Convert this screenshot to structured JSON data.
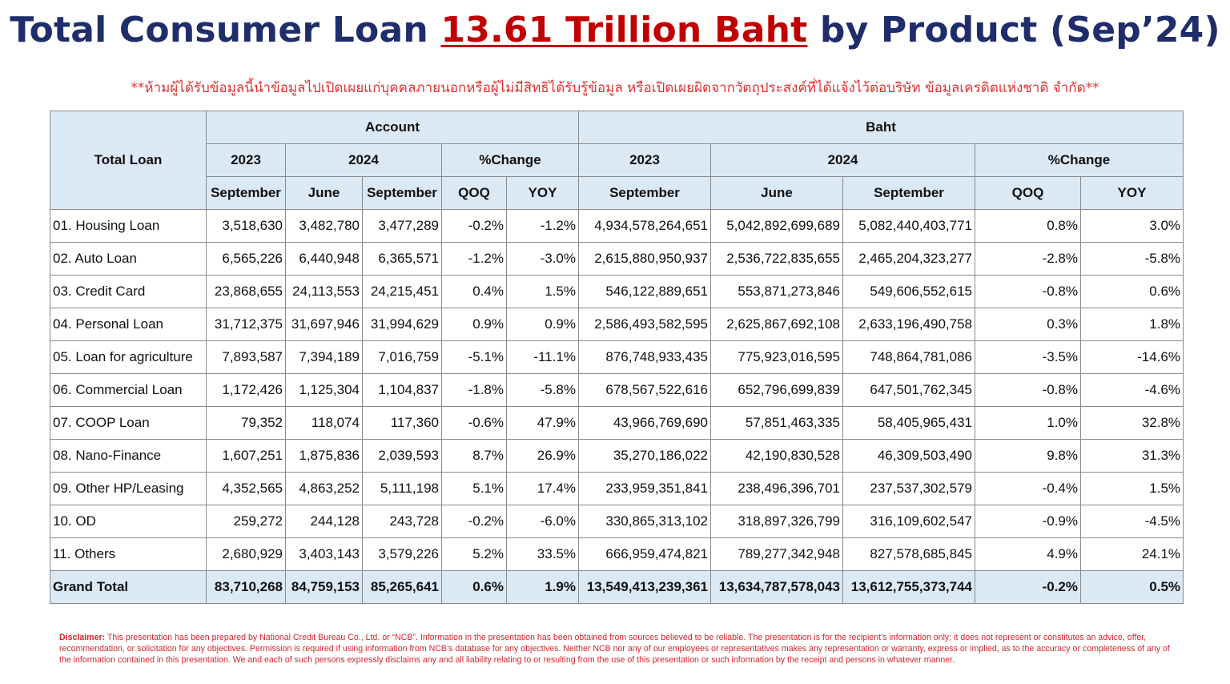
{
  "title": {
    "prefix": "Total Consumer Loan ",
    "highlight": "13.61 Trillion Baht",
    "suffix": " by Product (Sep’24)"
  },
  "warning": "**ห้ามผู้ได้รับข้อมูลนี้นำข้อมูลไปเปิดเผยแก่บุคคลภายนอกหรือผู้ไม่มีสิทธิได้รับรู้ข้อมูล หรือเปิดเผยผิดจากวัตถุประสงค์ที่ได้แจ้งไว้ต่อบริษัท ข้อมูลเครดิตแห่งชาติ จำกัด**",
  "table": {
    "corner": "Total Loan",
    "groups": {
      "account": "Account",
      "baht": "Baht"
    },
    "years": {
      "y2023": "2023",
      "y2024": "2024",
      "change": "%Change"
    },
    "subheaders": {
      "september": "September",
      "june": "June",
      "qoq": "QOQ",
      "yoy": "YOY"
    },
    "rows": [
      {
        "name": "01. Housing Loan",
        "values": [
          "3,518,630",
          "3,482,780",
          "3,477,289",
          "-0.2%",
          "-1.2%",
          "4,934,578,264,651",
          "5,042,892,699,689",
          "5,082,440,403,771",
          "0.8%",
          "3.0%"
        ]
      },
      {
        "name": "02. Auto Loan",
        "values": [
          "6,565,226",
          "6,440,948",
          "6,365,571",
          "-1.2%",
          "-3.0%",
          "2,615,880,950,937",
          "2,536,722,835,655",
          "2,465,204,323,277",
          "-2.8%",
          "-5.8%"
        ]
      },
      {
        "name": "03. Credit Card",
        "values": [
          "23,868,655",
          "24,113,553",
          "24,215,451",
          "0.4%",
          "1.5%",
          "546,122,889,651",
          "553,871,273,846",
          "549,606,552,615",
          "-0.8%",
          "0.6%"
        ]
      },
      {
        "name": "04. Personal Loan",
        "values": [
          "31,712,375",
          "31,697,946",
          "31,994,629",
          "0.9%",
          "0.9%",
          "2,586,493,582,595",
          "2,625,867,692,108",
          "2,633,196,490,758",
          "0.3%",
          "1.8%"
        ]
      },
      {
        "name": "05. Loan for agriculture",
        "values": [
          "7,893,587",
          "7,394,189",
          "7,016,759",
          "-5.1%",
          "-11.1%",
          "876,748,933,435",
          "775,923,016,595",
          "748,864,781,086",
          "-3.5%",
          "-14.6%"
        ]
      },
      {
        "name": "06. Commercial Loan",
        "values": [
          "1,172,426",
          "1,125,304",
          "1,104,837",
          "-1.8%",
          "-5.8%",
          "678,567,522,616",
          "652,796,699,839",
          "647,501,762,345",
          "-0.8%",
          "-4.6%"
        ]
      },
      {
        "name": "07. COOP Loan",
        "values": [
          "79,352",
          "118,074",
          "117,360",
          "-0.6%",
          "47.9%",
          "43,966,769,690",
          "57,851,463,335",
          "58,405,965,431",
          "1.0%",
          "32.8%"
        ]
      },
      {
        "name": "08. Nano-Finance",
        "values": [
          "1,607,251",
          "1,875,836",
          "2,039,593",
          "8.7%",
          "26.9%",
          "35,270,186,022",
          "42,190,830,528",
          "46,309,503,490",
          "9.8%",
          "31.3%"
        ]
      },
      {
        "name": "09. Other HP/Leasing",
        "values": [
          "4,352,565",
          "4,863,252",
          "5,111,198",
          "5.1%",
          "17.4%",
          "233,959,351,841",
          "238,496,396,701",
          "237,537,302,579",
          "-0.4%",
          "1.5%"
        ]
      },
      {
        "name": "10. OD",
        "values": [
          "259,272",
          "244,128",
          "243,728",
          "-0.2%",
          "-6.0%",
          "330,865,313,102",
          "318,897,326,799",
          "316,109,602,547",
          "-0.9%",
          "-4.5%"
        ]
      },
      {
        "name": "11. Others",
        "values": [
          "2,680,929",
          "3,403,143",
          "3,579,226",
          "5.2%",
          "33.5%",
          "666,959,474,821",
          "789,277,342,948",
          "827,578,685,845",
          "4.9%",
          "24.1%"
        ]
      }
    ],
    "total": {
      "name": "Grand Total",
      "values": [
        "83,710,268",
        "84,759,153",
        "85,265,641",
        "0.6%",
        "1.9%",
        "13,549,413,239,361",
        "13,634,787,578,043",
        "13,612,755,373,744",
        "-0.2%",
        "0.5%"
      ]
    }
  },
  "disclaimer": {
    "label": "Disclaimer:",
    "text": " This presentation has been prepared by National Credit Bureau Co., Ltd. or “NCB”. Information in the presentation has been obtained from sources believed to be reliable. The presentation is for the recipient’s information only; it does not represent or constitutes an advice, offer, recommendation, or solicitation for any objectives. Permission is required if using information from NCB’s database for any objectives. Neither NCB nor any of our employees or representatives makes any representation or warranty, express or implied, as to the accuracy or completeness of any of the information contained in this presentation. We and each of such persons expressly disclaims any and all liability relating to or resulting from the use of this presentation or such information by the receipt and persons in whatever manner."
  }
}
